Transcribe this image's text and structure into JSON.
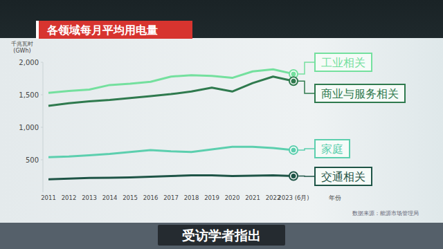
{
  "chart_data": {
    "type": "line",
    "title": "各领域每月平均用电量",
    "y_label": "千兆瓦时\n(GWh)",
    "x_label": "年份",
    "source": "数据来源：能源市场管理局",
    "caption": "受访学者指出",
    "categories": [
      "2011",
      "2012",
      "2013",
      "2014",
      "2015",
      "2016",
      "2017",
      "2018",
      "2019",
      "2020",
      "2021",
      "2022",
      "2023 (6月)"
    ],
    "series": [
      {
        "name": "工业相关",
        "color": "#74e09e",
        "values": [
          1530,
          1560,
          1580,
          1650,
          1670,
          1700,
          1780,
          1800,
          1790,
          1760,
          1860,
          1890,
          1820
        ]
      },
      {
        "name": "商业与服务相关",
        "color": "#2f7a4e",
        "values": [
          1330,
          1370,
          1400,
          1420,
          1450,
          1480,
          1510,
          1550,
          1610,
          1550,
          1680,
          1780,
          1710
        ]
      },
      {
        "name": "家庭",
        "color": "#5ccfae",
        "values": [
          540,
          550,
          570,
          590,
          620,
          650,
          630,
          620,
          660,
          700,
          700,
          680,
          650
        ]
      },
      {
        "name": "交通相关",
        "color": "#1e5446",
        "values": [
          200,
          210,
          220,
          225,
          230,
          240,
          250,
          260,
          260,
          250,
          255,
          260,
          250
        ]
      }
    ],
    "ylim": [
      0,
      2000
    ],
    "yticks": [
      500,
      {
        "value": 1000,
        "label": "1,000"
      },
      {
        "value": 1500,
        "label": "1,500"
      },
      {
        "value": 2000,
        "label": "2,000"
      }
    ],
    "grid": false
  }
}
